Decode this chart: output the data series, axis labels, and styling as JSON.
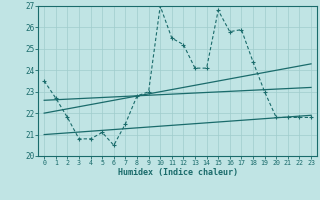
{
  "xlabel": "Humidex (Indice chaleur)",
  "bg_color": "#c0e4e4",
  "grid_color": "#a0cccc",
  "line_color": "#1a6b6b",
  "xlim": [
    -0.5,
    23.5
  ],
  "ylim": [
    20,
    27
  ],
  "xticks": [
    0,
    1,
    2,
    3,
    4,
    5,
    6,
    7,
    8,
    9,
    10,
    11,
    12,
    13,
    14,
    15,
    16,
    17,
    18,
    19,
    20,
    21,
    22,
    23
  ],
  "yticks": [
    20,
    21,
    22,
    23,
    24,
    25,
    26,
    27
  ],
  "series1_x": [
    0,
    1,
    2,
    3,
    4,
    5,
    6,
    7,
    8,
    9,
    10,
    11,
    12,
    13,
    14,
    15,
    16,
    17,
    18,
    19,
    20,
    21,
    22,
    23
  ],
  "series1_y": [
    23.5,
    22.7,
    21.8,
    20.8,
    20.8,
    21.1,
    20.5,
    21.5,
    22.8,
    23.0,
    27.0,
    25.5,
    25.2,
    24.1,
    24.1,
    26.8,
    25.8,
    25.9,
    24.4,
    23.0,
    21.8,
    21.8,
    21.8,
    21.8
  ],
  "line2_x": [
    0,
    23
  ],
  "line2_y": [
    22.0,
    24.3
  ],
  "line3_x": [
    0,
    23
  ],
  "line3_y": [
    21.0,
    21.9
  ],
  "line4_x": [
    0,
    23
  ],
  "line4_y": [
    22.6,
    23.2
  ]
}
